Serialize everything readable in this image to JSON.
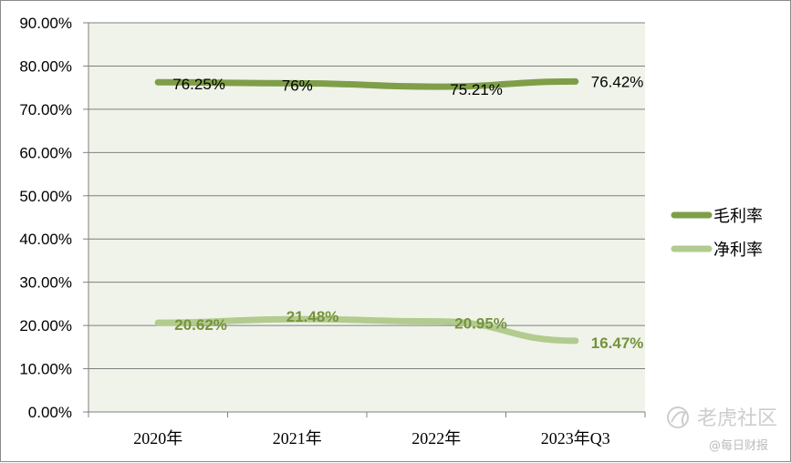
{
  "chart_data": {
    "type": "line",
    "categories": [
      "2020年",
      "2021年",
      "2022年",
      "2023年Q3"
    ],
    "ylim": [
      0,
      90
    ],
    "yticks": [
      "0.00%",
      "10.00%",
      "20.00%",
      "30.00%",
      "40.00%",
      "50.00%",
      "60.00%",
      "70.00%",
      "80.00%",
      "90.00%"
    ],
    "grid": true,
    "legend_position": "right",
    "plot_background": "#eff3e9",
    "series": [
      {
        "name": "毛利率",
        "values": [
          76.25,
          76,
          75.21,
          76.42
        ],
        "labels": [
          "76.25%",
          "76%",
          "75.21%",
          "76.42%"
        ],
        "color": "#7e9e48"
      },
      {
        "name": "净利率",
        "values": [
          20.62,
          21.48,
          20.95,
          16.47
        ],
        "labels": [
          "20.62%",
          "21.48%",
          "20.95%",
          "16.47%"
        ],
        "color": "#b2cb8e"
      }
    ]
  },
  "watermark": {
    "brand": "老虎社区",
    "source": "@每日财报",
    "icon": "tiger-community-logo-icon"
  }
}
